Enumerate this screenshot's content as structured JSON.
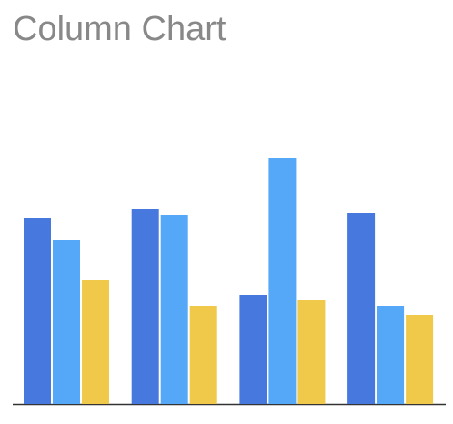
{
  "chart_data": {
    "type": "bar",
    "title": "Column Chart",
    "categories": [
      null,
      null,
      null,
      null
    ],
    "series": [
      {
        "color": "#4778de",
        "values": [
          204,
          214,
          120,
          210
        ]
      },
      {
        "color": "#55a8f7",
        "values": [
          180,
          208,
          270,
          108
        ]
      },
      {
        "color": "#f0c84a",
        "values": [
          136,
          108,
          114,
          98
        ]
      }
    ],
    "ylim": [
      0,
      300
    ]
  }
}
